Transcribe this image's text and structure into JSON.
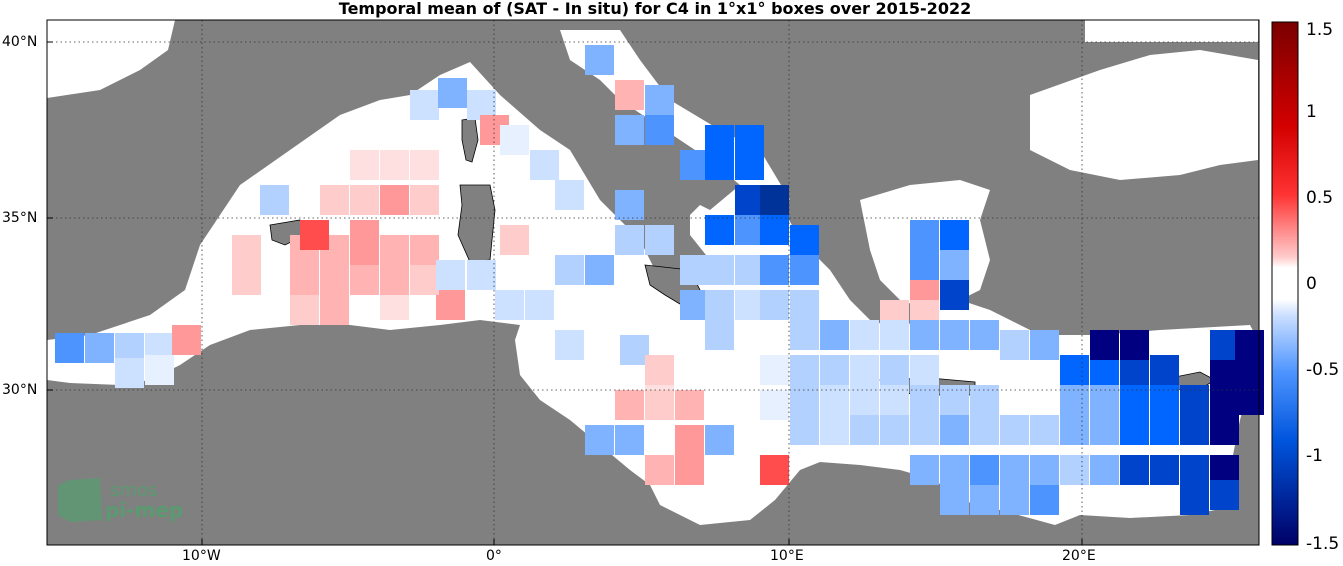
{
  "title": "Temporal mean of (SAT - In situ) for C4 in 1°x1° boxes over 2015-2022",
  "lat_labels": [
    "40°N",
    "35°N",
    "30°N"
  ],
  "lon_labels": [
    "10°W",
    "0°",
    "10°E",
    "20°E"
  ],
  "colorbar": {
    "ticks": [
      "1.5",
      "1",
      "0.5",
      "0",
      "-0.5",
      "-1",
      "-1.5"
    ],
    "range": [
      -1.5,
      1.5
    ]
  },
  "logo": {
    "line1": "smos",
    "line2": "pi-mep"
  },
  "colors": {
    "land": "#808080",
    "sea": "#ffffff",
    "coast": "#000000"
  }
}
